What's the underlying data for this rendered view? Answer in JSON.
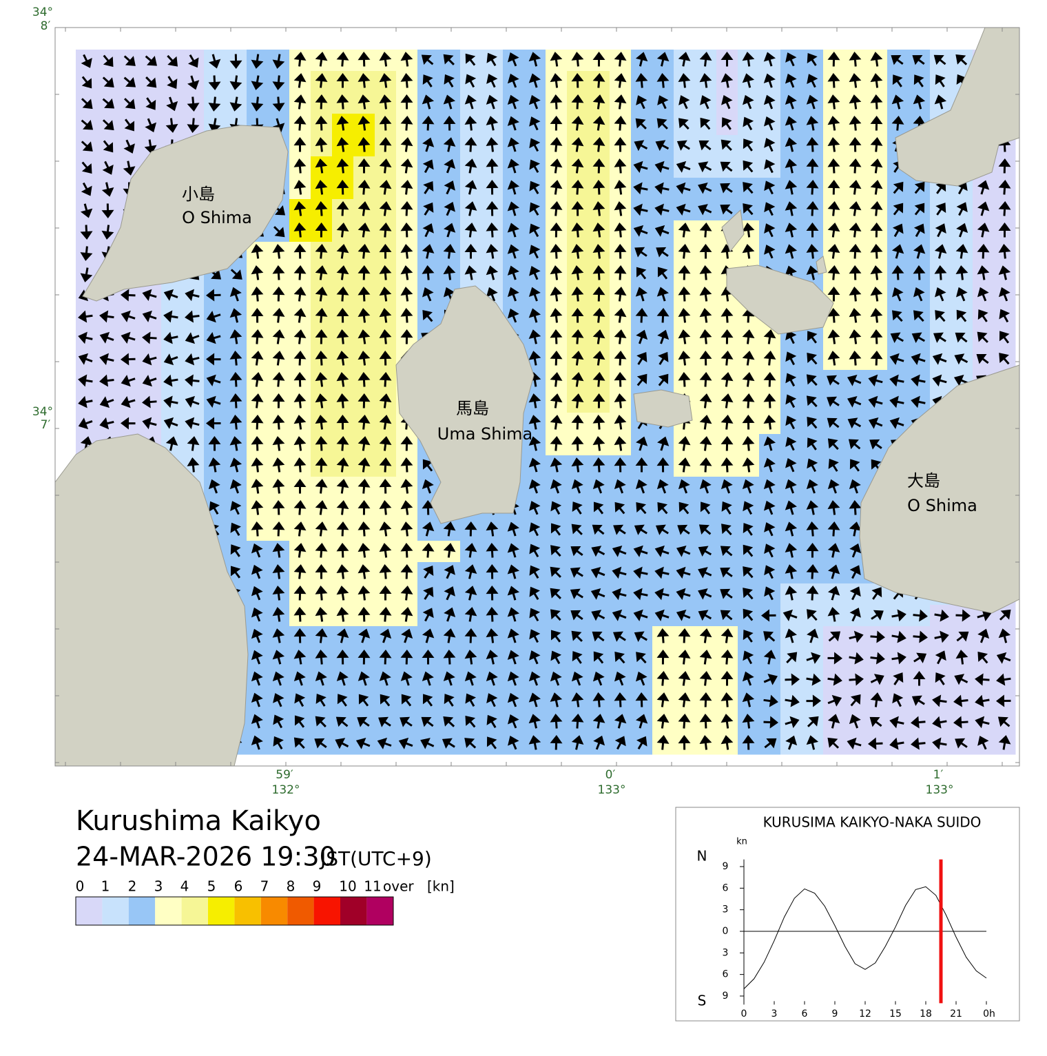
{
  "map": {
    "lat_labels": [
      {
        "deg": "34°",
        "min": "8′"
      },
      {
        "deg": "34°",
        "min": "7′"
      }
    ],
    "lon_labels": [
      {
        "min": "59′",
        "deg": "132°"
      },
      {
        "min": "0′",
        "deg": "133°"
      },
      {
        "min": "1′",
        "deg": "133°"
      }
    ],
    "places": [
      {
        "ja": "小島",
        "en": "O Shima"
      },
      {
        "ja": "馬島",
        "en": "Uma Shima"
      },
      {
        "ja": "大島",
        "en": "O Shima"
      }
    ]
  },
  "title": "Kurushima Kaikyo",
  "datetime": "24-MAR-2026 19:30",
  "timezone": "JST(UTC+9)",
  "legend": {
    "labels": [
      "0",
      "1",
      "2",
      "3",
      "4",
      "5",
      "6",
      "7",
      "8",
      "9",
      "10",
      "11"
    ],
    "over": "over",
    "unit": "[kn]",
    "colors": [
      "#d8d8f8",
      "#c8e2fc",
      "#98c6f6",
      "#ffffc4",
      "#f6f696",
      "#f6ee00",
      "#f8c000",
      "#f88a00",
      "#f05a00",
      "#f81400",
      "#a00028",
      "#b00060"
    ]
  },
  "chart_data": {
    "type": "line",
    "title": "KURUSIMA KAIKYO-NAKA SUIDO",
    "unit": "kn",
    "north": "N",
    "south": "S",
    "x": [
      0,
      1,
      2,
      3,
      4,
      5,
      6,
      7,
      8,
      9,
      10,
      11,
      12,
      13,
      14,
      15,
      16,
      17,
      18,
      19,
      20,
      21,
      22,
      23,
      24
    ],
    "values": [
      -8.0,
      -6.6,
      -4.3,
      -1.3,
      2.0,
      4.6,
      5.9,
      5.3,
      3.5,
      0.8,
      -2.1,
      -4.5,
      -5.3,
      -4.4,
      -2.1,
      0.6,
      3.6,
      5.8,
      6.2,
      5.0,
      2.3,
      -0.8,
      -3.6,
      -5.5,
      -6.5
    ],
    "color": "#000000",
    "current_time": 19.5,
    "marker_color": "#f01010",
    "xlim": [
      0,
      24
    ],
    "ylim": [
      -10,
      10
    ],
    "xticks": [
      0,
      3,
      6,
      9,
      12,
      15,
      18,
      21,
      {
        "value": 24,
        "label": "0h"
      }
    ],
    "yticks": [
      9,
      6,
      3,
      0,
      {
        "value": -3,
        "label": "3"
      },
      {
        "value": -6,
        "label": "6"
      },
      {
        "value": -9,
        "label": "9"
      }
    ]
  }
}
